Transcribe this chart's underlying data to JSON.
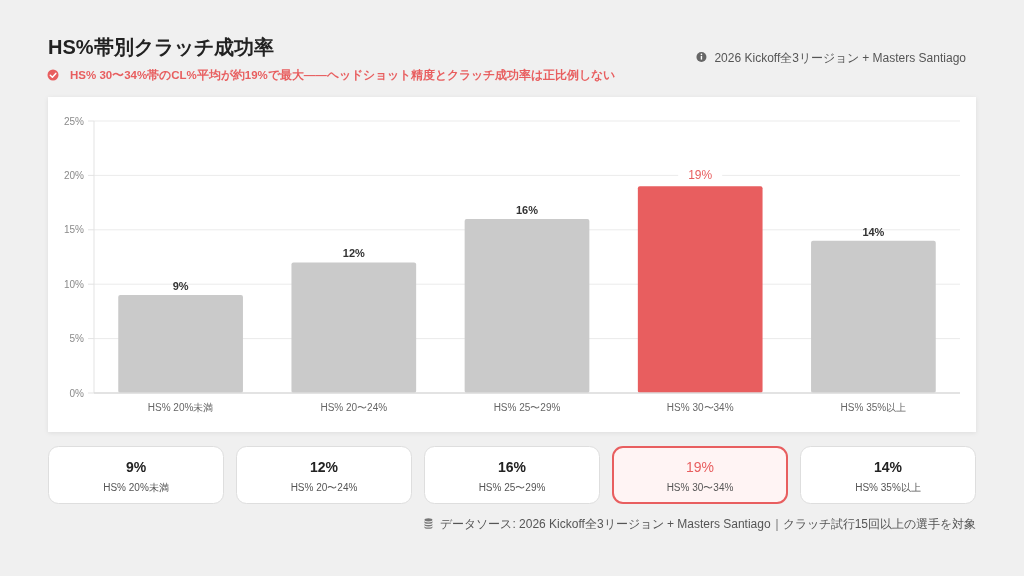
{
  "chart_data": {
    "type": "bar",
    "title": "HS%帯別クラッチ成功率",
    "subtitle": "HS% 30〜34%帯のCL%平均が約19%で最大——ヘッドショット精度とクラッチ成功率は正比例しない",
    "annotations": [
      "2026 Kickoff全3リージョン + Masters Santiago",
      "データソース: 2026 Kickoff全3リージョン + Masters Santiago｜クラッチ試行15回以上の選手を対象"
    ],
    "categories": [
      "HS% 20%未満",
      "HS% 20〜24%",
      "HS% 25〜29%",
      "HS% 30〜34%",
      "HS% 35%以上"
    ],
    "values": [
      9,
      12,
      16,
      19,
      14
    ],
    "value_labels": [
      "9%",
      "12%",
      "16%",
      "19%",
      "14%"
    ],
    "colors": [
      "#cacaca",
      "#cacaca",
      "#cacaca",
      "#e85e5f",
      "#cacaca"
    ],
    "ylim": [
      0,
      25
    ],
    "yticks": [
      {
        "value": 0,
        "label": "0%"
      },
      {
        "value": 5,
        "label": "5%"
      },
      {
        "value": 10,
        "label": "10%"
      },
      {
        "value": 15,
        "label": "15%"
      },
      {
        "value": 20,
        "label": "20%"
      },
      {
        "value": 25,
        "label": "25%"
      }
    ],
    "grid": "y"
  }
}
